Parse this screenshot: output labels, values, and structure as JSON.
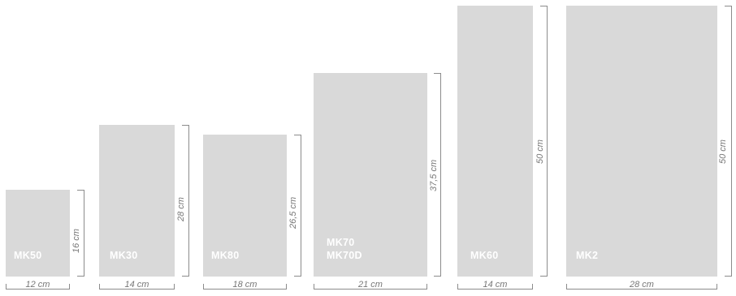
{
  "colors": {
    "panel": "#d9d9d9",
    "panel_label": "#ffffff",
    "bracket": "#8c8c8c",
    "dimension_text": "#777777"
  },
  "items": [
    {
      "model": [
        "MK50"
      ],
      "width": "12 cm",
      "height": "16 cm"
    },
    {
      "model": [
        "MK30"
      ],
      "width": "14 cm",
      "height": "28 cm"
    },
    {
      "model": [
        "MK80"
      ],
      "width": "18 cm",
      "height": "26,5 cm"
    },
    {
      "model": [
        "MK70",
        "MK70D"
      ],
      "width": "21 cm",
      "height": "37,5 cm"
    },
    {
      "model": [
        "MK60"
      ],
      "width": "14 cm",
      "height": "50 cm"
    },
    {
      "model": [
        "MK2"
      ],
      "width": "28 cm",
      "height": "50 cm"
    }
  ]
}
